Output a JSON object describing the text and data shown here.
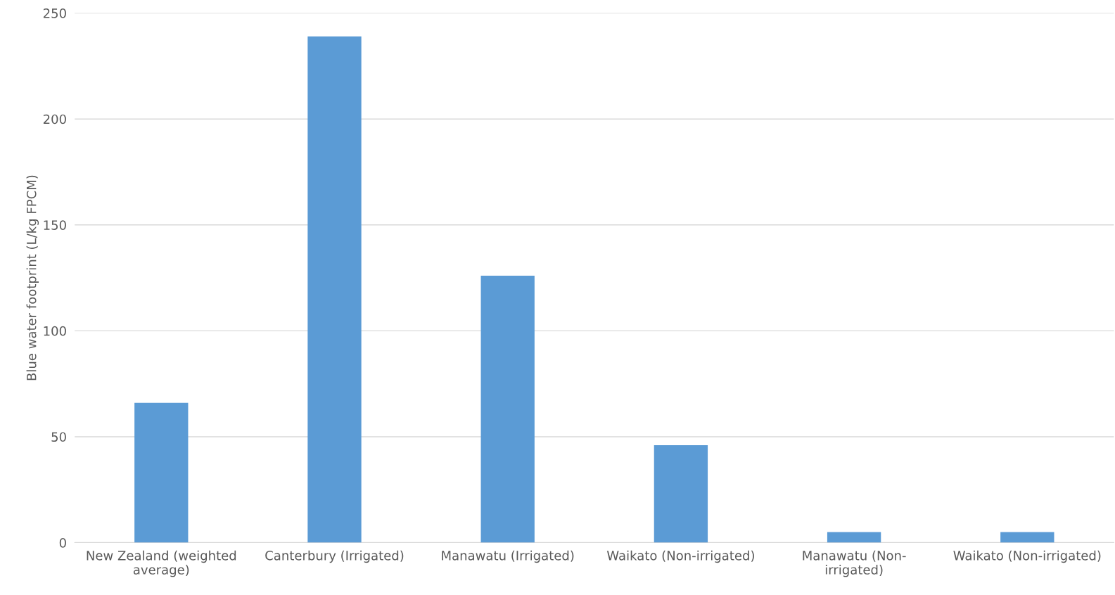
{
  "chart_data": {
    "type": "bar",
    "ylabel": "Blue water footprint (L/kg FPCM)",
    "categories": [
      "New Zealand (weighted average)",
      "Canterbury (Irrigated)",
      "Manawatu (Irrigated)",
      "Waikato (Non-irrigated)",
      "Manawatu (Non-irrigated)",
      "Waikato (Non-irrigated)"
    ],
    "values": [
      66,
      239,
      126,
      46,
      5,
      5
    ],
    "color": "#5b9bd5",
    "ylim": [
      0,
      250
    ],
    "yticks": [
      0,
      50,
      100,
      150,
      200,
      250
    ],
    "grid": "y",
    "legend": false
  }
}
